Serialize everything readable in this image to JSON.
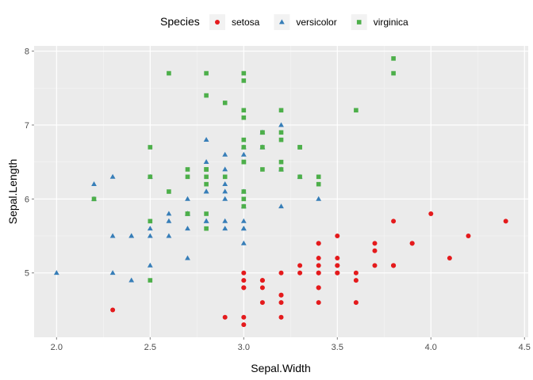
{
  "chart_data": {
    "type": "scatter",
    "xlabel": "Sepal.Width",
    "ylabel": "Sepal.Length",
    "xlim": [
      1.88,
      4.52
    ],
    "ylim": [
      4.13,
      8.07
    ],
    "x_ticks": [
      2.0,
      2.5,
      3.0,
      3.5,
      4.0,
      4.5
    ],
    "x_tick_labels": [
      "2.0",
      "2.5",
      "3.0",
      "3.5",
      "4.0",
      "4.5"
    ],
    "y_ticks": [
      5,
      6,
      7,
      8
    ],
    "y_tick_labels": [
      "5",
      "6",
      "7",
      "8"
    ],
    "grid": true,
    "legend": {
      "title": "Species",
      "position": "top"
    },
    "series": [
      {
        "name": "setosa",
        "color": "#e41a1c",
        "marker": "circle",
        "points": [
          [
            3.5,
            5.1
          ],
          [
            3.0,
            4.9
          ],
          [
            3.2,
            4.7
          ],
          [
            3.1,
            4.6
          ],
          [
            3.6,
            5.0
          ],
          [
            3.9,
            5.4
          ],
          [
            3.4,
            4.6
          ],
          [
            3.4,
            5.0
          ],
          [
            2.9,
            4.4
          ],
          [
            3.1,
            4.9
          ],
          [
            3.7,
            5.4
          ],
          [
            3.4,
            4.8
          ],
          [
            3.0,
            4.8
          ],
          [
            3.0,
            4.3
          ],
          [
            4.0,
            5.8
          ],
          [
            4.4,
            5.7
          ],
          [
            3.9,
            5.4
          ],
          [
            3.5,
            5.1
          ],
          [
            3.8,
            5.7
          ],
          [
            3.8,
            5.1
          ],
          [
            3.4,
            5.4
          ],
          [
            3.7,
            5.1
          ],
          [
            3.6,
            4.6
          ],
          [
            3.3,
            5.1
          ],
          [
            3.4,
            4.8
          ],
          [
            3.0,
            5.0
          ],
          [
            3.4,
            5.0
          ],
          [
            3.5,
            5.2
          ],
          [
            3.4,
            5.2
          ],
          [
            3.2,
            4.7
          ],
          [
            3.1,
            4.8
          ],
          [
            3.4,
            5.4
          ],
          [
            4.1,
            5.2
          ],
          [
            4.2,
            5.5
          ],
          [
            3.1,
            4.9
          ],
          [
            3.2,
            5.0
          ],
          [
            3.5,
            5.5
          ],
          [
            3.6,
            4.9
          ],
          [
            3.0,
            4.4
          ],
          [
            3.4,
            5.1
          ],
          [
            3.5,
            5.0
          ],
          [
            2.3,
            4.5
          ],
          [
            3.2,
            4.4
          ],
          [
            3.5,
            5.0
          ],
          [
            3.8,
            5.1
          ],
          [
            3.0,
            4.8
          ],
          [
            3.8,
            5.1
          ],
          [
            3.2,
            4.6
          ],
          [
            3.7,
            5.3
          ],
          [
            3.3,
            5.0
          ]
        ]
      },
      {
        "name": "versicolor",
        "color": "#377eb8",
        "marker": "triangle",
        "points": [
          [
            3.2,
            7.0
          ],
          [
            3.2,
            6.4
          ],
          [
            3.1,
            6.9
          ],
          [
            2.3,
            5.5
          ],
          [
            2.8,
            6.5
          ],
          [
            2.8,
            5.7
          ],
          [
            3.3,
            6.3
          ],
          [
            2.4,
            4.9
          ],
          [
            2.9,
            6.6
          ],
          [
            2.7,
            5.2
          ],
          [
            2.0,
            5.0
          ],
          [
            3.0,
            5.9
          ],
          [
            2.2,
            6.0
          ],
          [
            2.9,
            6.1
          ],
          [
            2.9,
            5.6
          ],
          [
            3.1,
            6.7
          ],
          [
            3.0,
            5.6
          ],
          [
            2.7,
            5.8
          ],
          [
            2.2,
            6.2
          ],
          [
            2.5,
            5.6
          ],
          [
            3.2,
            5.9
          ],
          [
            2.8,
            6.1
          ],
          [
            2.5,
            6.3
          ],
          [
            2.8,
            6.1
          ],
          [
            2.9,
            6.4
          ],
          [
            3.0,
            6.6
          ],
          [
            2.8,
            6.8
          ],
          [
            3.0,
            6.7
          ],
          [
            2.9,
            6.0
          ],
          [
            2.6,
            5.7
          ],
          [
            2.4,
            5.5
          ],
          [
            2.4,
            5.5
          ],
          [
            2.7,
            5.8
          ],
          [
            2.7,
            6.0
          ],
          [
            3.0,
            5.4
          ],
          [
            3.4,
            6.0
          ],
          [
            3.1,
            6.7
          ],
          [
            2.3,
            6.3
          ],
          [
            3.0,
            5.6
          ],
          [
            2.5,
            5.5
          ],
          [
            2.6,
            5.5
          ],
          [
            3.0,
            6.1
          ],
          [
            2.6,
            5.8
          ],
          [
            2.3,
            5.0
          ],
          [
            2.7,
            5.6
          ],
          [
            3.0,
            5.7
          ],
          [
            2.9,
            5.7
          ],
          [
            2.9,
            6.2
          ],
          [
            2.5,
            5.1
          ],
          [
            2.8,
            5.7
          ]
        ]
      },
      {
        "name": "virginica",
        "color": "#4daf4a",
        "marker": "square",
        "points": [
          [
            3.3,
            6.3
          ],
          [
            2.7,
            5.8
          ],
          [
            3.0,
            7.1
          ],
          [
            2.9,
            6.3
          ],
          [
            3.0,
            6.5
          ],
          [
            3.0,
            7.6
          ],
          [
            2.5,
            4.9
          ],
          [
            2.9,
            7.3
          ],
          [
            2.5,
            6.7
          ],
          [
            3.6,
            7.2
          ],
          [
            3.2,
            6.5
          ],
          [
            2.7,
            6.4
          ],
          [
            3.0,
            6.8
          ],
          [
            2.5,
            5.7
          ],
          [
            2.8,
            5.8
          ],
          [
            3.2,
            6.4
          ],
          [
            3.0,
            6.5
          ],
          [
            3.8,
            7.7
          ],
          [
            2.6,
            7.7
          ],
          [
            2.2,
            6.0
          ],
          [
            3.2,
            6.9
          ],
          [
            2.8,
            5.6
          ],
          [
            2.8,
            7.7
          ],
          [
            2.7,
            6.3
          ],
          [
            3.3,
            6.7
          ],
          [
            3.2,
            7.2
          ],
          [
            2.8,
            6.2
          ],
          [
            3.0,
            6.1
          ],
          [
            2.8,
            6.4
          ],
          [
            3.0,
            7.2
          ],
          [
            2.8,
            7.4
          ],
          [
            3.8,
            7.9
          ],
          [
            2.8,
            6.4
          ],
          [
            2.8,
            6.3
          ],
          [
            2.6,
            6.1
          ],
          [
            3.0,
            7.7
          ],
          [
            3.4,
            6.3
          ],
          [
            3.1,
            6.4
          ],
          [
            3.0,
            6.0
          ],
          [
            3.1,
            6.9
          ],
          [
            3.1,
            6.7
          ],
          [
            3.1,
            6.9
          ],
          [
            2.7,
            5.8
          ],
          [
            3.2,
            6.8
          ],
          [
            3.3,
            6.7
          ],
          [
            3.0,
            6.7
          ],
          [
            2.5,
            6.3
          ],
          [
            3.0,
            6.5
          ],
          [
            3.4,
            6.2
          ],
          [
            3.0,
            5.9
          ]
        ]
      }
    ]
  }
}
